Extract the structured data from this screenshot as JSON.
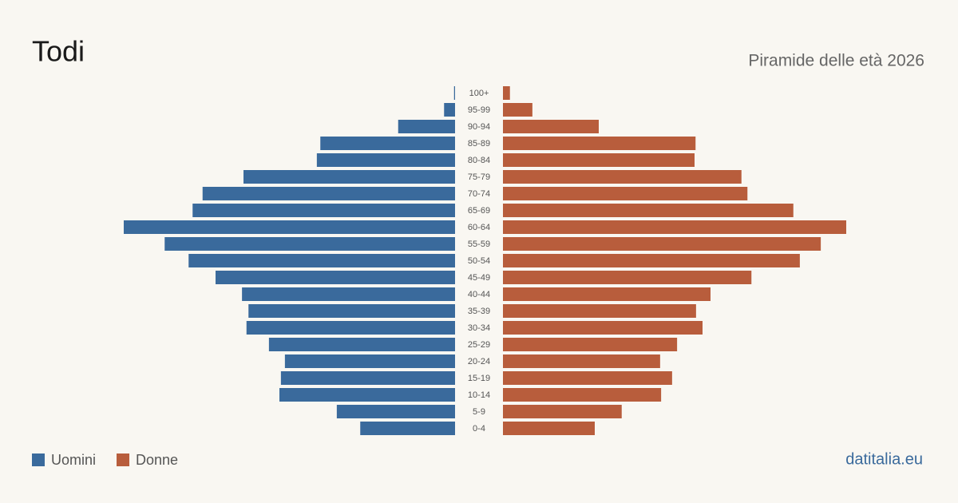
{
  "chart_data": {
    "type": "pyramid",
    "title": "Todi",
    "subtitle": "Piramide delle età 2026",
    "source": "datitalia.eu",
    "categories": [
      "100+",
      "95-99",
      "90-94",
      "85-89",
      "80-84",
      "75-79",
      "70-74",
      "65-69",
      "60-64",
      "55-59",
      "50-54",
      "45-49",
      "40-44",
      "35-39",
      "30-34",
      "25-29",
      "20-24",
      "15-19",
      "10-14",
      "5-9",
      "0-4"
    ],
    "series": [
      {
        "name": "Uomini",
        "color": "#3a6a9c",
        "values": [
          2,
          22,
          114,
          270,
          277,
          424,
          506,
          526,
          664,
          582,
          534,
          480,
          427,
          414,
          418,
          373,
          341,
          349,
          352,
          237,
          190
        ]
      },
      {
        "name": "Donne",
        "color": "#b85d3c",
        "values": [
          14,
          59,
          192,
          386,
          384,
          478,
          490,
          582,
          688,
          637,
          595,
          498,
          416,
          387,
          400,
          349,
          315,
          339,
          317,
          238,
          184
        ]
      }
    ]
  }
}
